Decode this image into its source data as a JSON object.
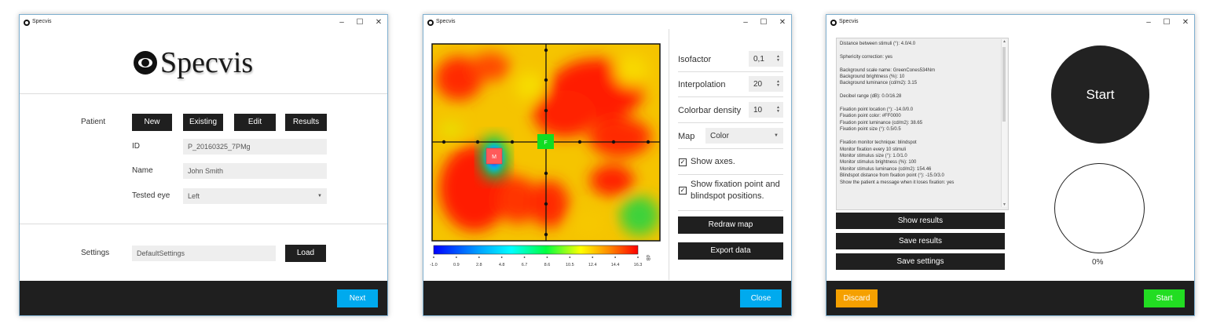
{
  "window1": {
    "title": "Specvis",
    "logo_text": "Specvis",
    "patient_label": "Patient",
    "buttons": {
      "new": "New",
      "existing": "Existing",
      "edit": "Edit",
      "results": "Results"
    },
    "id_label": "ID",
    "id_value": "P_20160325_7PMg",
    "name_label": "Name",
    "name_value": "John Smith",
    "eye_label": "Tested eye",
    "eye_value": "Left",
    "settings_label": "Settings",
    "settings_value": "DefaultSettings",
    "load_label": "Load",
    "next_label": "Next"
  },
  "window2": {
    "title": "Specvis",
    "isofactor_label": "Isofactor",
    "isofactor_value": "0,1",
    "interpolation_label": "Interpolation",
    "interpolation_value": "20",
    "colorbar_density_label": "Colorbar density",
    "colorbar_density_value": "10",
    "map_label": "Map",
    "map_value": "Color",
    "show_axes_label": "Show axes.",
    "show_fixation_label_1": "Show fixation point and",
    "show_fixation_label_2": "blindspot positions.",
    "redraw_label": "Redraw map",
    "export_label": "Export data",
    "close_label": "Close",
    "fixation_marker": "F",
    "blindspot_marker": "M",
    "colorbar_unit": "dB",
    "colorbar_ticks": [
      "-1.0",
      "0.9",
      "2.8",
      "4.8",
      "6.7",
      "8.6",
      "10.5",
      "12.4",
      "14.4",
      "16.3"
    ]
  },
  "window3": {
    "title": "Specvis",
    "log_lines": [
      "Distance between stimuli (°): 4.0/4.0",
      "",
      "Sphericity correction: yes",
      "",
      "Background scale name: GreenCones534Nm",
      "Background brightness (%): 10",
      "Background luminance (cd/m2): 3.15",
      "",
      "Decibel range (dB): 0.0/16.28",
      "",
      "Fixation point location (°): -14.0/0.0",
      "Fixation point color: #FF0000",
      "Fixation point luminance (cd/m2): 38.65",
      "Fixation point size (°): 0.5/0.5",
      "",
      "Fixation monitor technique: blindspot",
      "Monitor fixation every 10 stimuli",
      "Monitor stimulus size (°): 1.0/1.0",
      "Monitor stimulus brightness (%): 100",
      "Monitor stimulus luminance (cd/m2): 154.46",
      "Blindspot distance from fixation point (°): -15.0/3.0",
      "Show the patient a message when it loses fixation: yes"
    ],
    "show_results_label": "Show results",
    "save_results_label": "Save results",
    "save_settings_label": "Save settings",
    "start_circle_label": "Start",
    "progress_percent": "0%",
    "progress_value": 0,
    "discard_label": "Discard",
    "start_label": "Start"
  },
  "colors": {
    "accent_blue": "#00aaee",
    "discard_orange": "#f5a000",
    "start_green": "#22dd22",
    "dark": "#1f1f1f"
  }
}
